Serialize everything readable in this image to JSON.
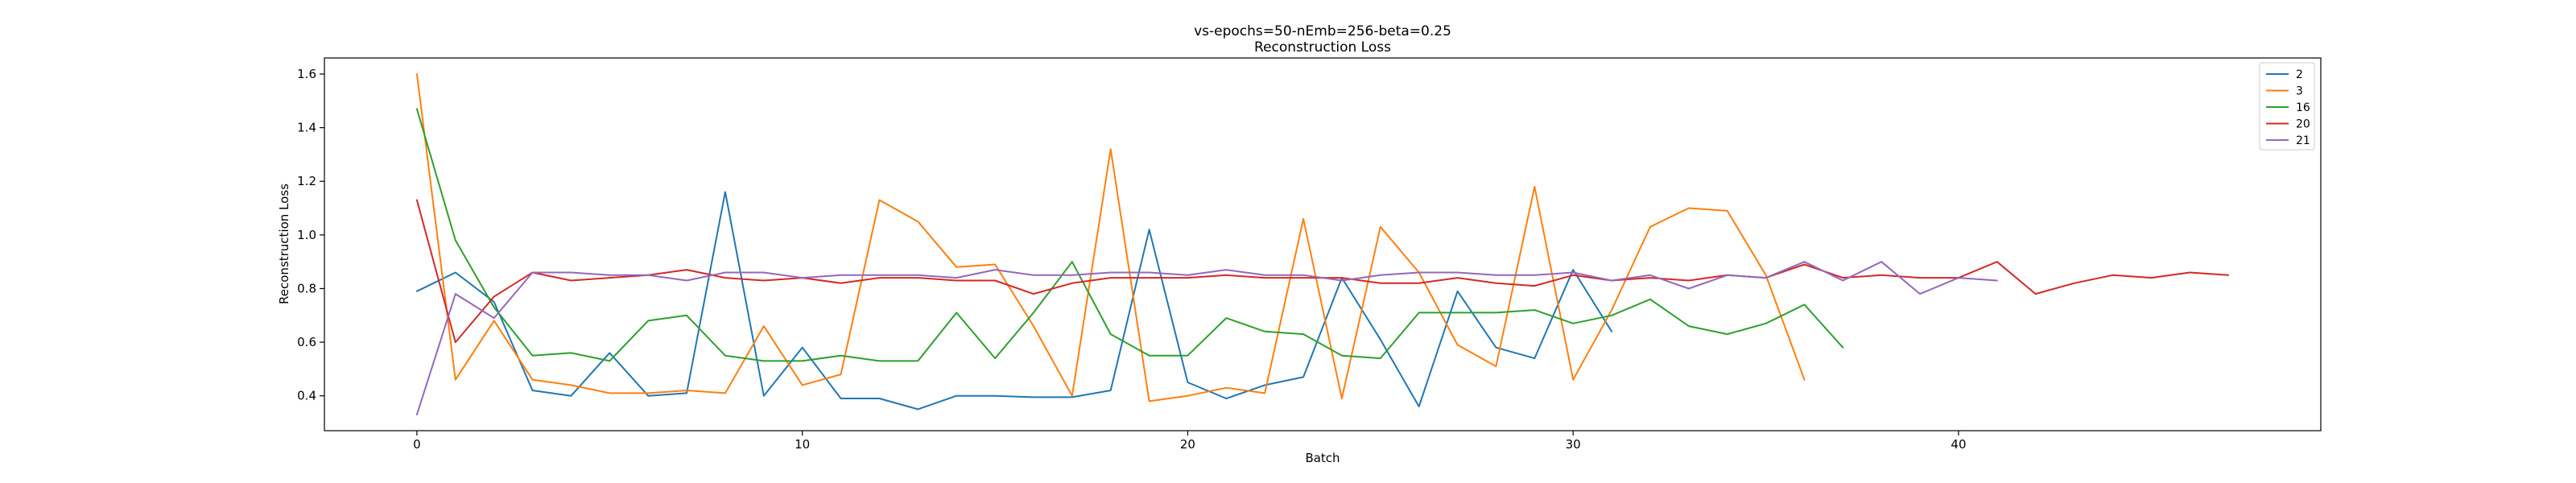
{
  "chart_data": {
    "type": "line",
    "title": "vs-epochs=50-nEmb=256-beta=0.25",
    "subtitle": "Reconstruction Loss",
    "xlabel": "Batch",
    "ylabel": "Reconstruction Loss",
    "xlim": [
      -2.4,
      49.4
    ],
    "ylim": [
      0.27,
      1.66
    ],
    "xticks": [
      0,
      10,
      20,
      30,
      40
    ],
    "yticks": [
      0.4,
      0.6,
      0.8,
      1.0,
      1.2,
      1.4,
      1.6
    ],
    "xtick_labels": [
      "0",
      "10",
      "20",
      "30",
      "40"
    ],
    "ytick_labels": [
      "0.4",
      "0.6",
      "0.8",
      "1.0",
      "1.2",
      "1.4",
      "1.6"
    ],
    "grid": false,
    "legend_position": "top-right",
    "series": [
      {
        "name": "2",
        "color": "#1f77b4",
        "values": [
          0.79,
          0.86,
          0.75,
          0.42,
          0.4,
          0.56,
          0.4,
          0.41,
          1.16,
          0.4,
          0.58,
          0.39,
          0.39,
          0.35,
          0.4,
          0.4,
          0.395,
          0.395,
          0.42,
          1.02,
          0.45,
          0.39,
          0.44,
          0.47,
          0.84,
          0.61,
          0.36,
          0.79,
          0.58,
          0.54,
          0.87,
          0.64
        ]
      },
      {
        "name": "3",
        "color": "#ff7f0e",
        "values": [
          1.6,
          0.46,
          0.68,
          0.46,
          0.44,
          0.41,
          0.41,
          0.42,
          0.41,
          0.66,
          0.44,
          0.48,
          1.13,
          1.05,
          0.88,
          0.89,
          0.66,
          0.4,
          1.32,
          0.38,
          0.4,
          0.43,
          0.41,
          1.06,
          0.39,
          1.03,
          0.86,
          0.59,
          0.51,
          1.18,
          0.46,
          0.72,
          1.03,
          1.1,
          1.09,
          0.85,
          0.46
        ]
      },
      {
        "name": "16",
        "color": "#2ca02c",
        "values": [
          1.47,
          0.98,
          0.73,
          0.55,
          0.56,
          0.53,
          0.68,
          0.7,
          0.55,
          0.53,
          0.53,
          0.55,
          0.53,
          0.53,
          0.71,
          0.54,
          0.71,
          0.9,
          0.63,
          0.55,
          0.55,
          0.69,
          0.64,
          0.63,
          0.55,
          0.54,
          0.71,
          0.71,
          0.71,
          0.72,
          0.67,
          0.7,
          0.76,
          0.66,
          0.63,
          0.67,
          0.74,
          0.58
        ]
      },
      {
        "name": "20",
        "color": "#d62728",
        "values": [
          1.13,
          0.6,
          0.77,
          0.86,
          0.83,
          0.84,
          0.85,
          0.87,
          0.84,
          0.83,
          0.84,
          0.82,
          0.84,
          0.84,
          0.83,
          0.83,
          0.78,
          0.82,
          0.84,
          0.84,
          0.84,
          0.85,
          0.84,
          0.84,
          0.84,
          0.82,
          0.82,
          0.84,
          0.82,
          0.81,
          0.85,
          0.83,
          0.84,
          0.83,
          0.85,
          0.84,
          0.89,
          0.84,
          0.85,
          0.84,
          0.84,
          0.9,
          0.78,
          0.82,
          0.85,
          0.84,
          0.86,
          0.85
        ]
      },
      {
        "name": "21",
        "color": "#9467bd",
        "values": [
          0.33,
          0.78,
          0.69,
          0.86,
          0.86,
          0.85,
          0.85,
          0.83,
          0.86,
          0.86,
          0.84,
          0.85,
          0.85,
          0.85,
          0.84,
          0.87,
          0.85,
          0.85,
          0.86,
          0.86,
          0.85,
          0.87,
          0.85,
          0.85,
          0.83,
          0.85,
          0.86,
          0.86,
          0.85,
          0.85,
          0.86,
          0.83,
          0.85,
          0.8,
          0.85,
          0.84,
          0.9,
          0.83,
          0.9,
          0.78,
          0.84,
          0.83
        ]
      }
    ]
  }
}
